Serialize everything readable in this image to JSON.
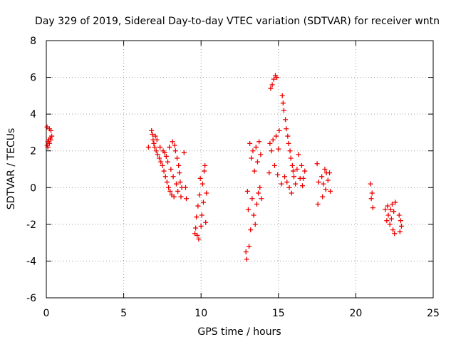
{
  "chart_data": {
    "type": "scatter",
    "title": "Day 329 of 2019, Sidereal Day-to-day VTEC variation (SDTVAR) for receiver wntn",
    "xlabel": "GPS time / hours",
    "ylabel": "SDTVAR / TECUs",
    "xlim": [
      0,
      25
    ],
    "ylim": [
      -6,
      8
    ],
    "xticks": [
      0,
      5,
      10,
      15,
      20,
      25
    ],
    "yticks": [
      -6,
      -4,
      -2,
      0,
      2,
      4,
      6,
      8
    ],
    "grid": true,
    "marker": "+",
    "color": "#ee0000",
    "series": [
      {
        "name": "SDTVAR",
        "points": [
          [
            0.05,
            2.3
          ],
          [
            0.1,
            2.5
          ],
          [
            0.15,
            2.6
          ],
          [
            0.2,
            3.2
          ],
          [
            0.25,
            2.7
          ],
          [
            0.3,
            3.1
          ],
          [
            0.35,
            2.8
          ],
          [
            0.05,
            3.3
          ],
          [
            0.1,
            2.2
          ],
          [
            0.2,
            2.4
          ],
          [
            0.3,
            2.6
          ],
          [
            6.6,
            2.2
          ],
          [
            6.8,
            3.1
          ],
          [
            6.85,
            2.9
          ],
          [
            6.9,
            2.6
          ],
          [
            6.95,
            2.4
          ],
          [
            7.0,
            2.2
          ],
          [
            7.05,
            2.8
          ],
          [
            7.1,
            2.0
          ],
          [
            7.15,
            2.6
          ],
          [
            7.2,
            1.8
          ],
          [
            7.3,
            1.6
          ],
          [
            7.35,
            2.2
          ],
          [
            7.4,
            1.4
          ],
          [
            7.5,
            1.2
          ],
          [
            7.55,
            2.0
          ],
          [
            7.6,
            0.9
          ],
          [
            7.65,
            1.9
          ],
          [
            7.7,
            0.6
          ],
          [
            7.75,
            1.7
          ],
          [
            7.8,
            0.3
          ],
          [
            7.85,
            1.4
          ],
          [
            7.9,
            0.0
          ],
          [
            7.95,
            2.2
          ],
          [
            8.0,
            -0.2
          ],
          [
            8.05,
            1.0
          ],
          [
            8.1,
            -0.4
          ],
          [
            8.15,
            2.5
          ],
          [
            8.2,
            0.6
          ],
          [
            8.25,
            -0.5
          ],
          [
            8.3,
            2.3
          ],
          [
            8.35,
            2.0
          ],
          [
            8.4,
            0.2
          ],
          [
            8.45,
            1.6
          ],
          [
            8.5,
            -0.2
          ],
          [
            8.55,
            1.2
          ],
          [
            8.6,
            0.8
          ],
          [
            8.65,
            0.3
          ],
          [
            8.7,
            -0.5
          ],
          [
            8.75,
            0.0
          ],
          [
            8.9,
            1.9
          ],
          [
            9.0,
            0.0
          ],
          [
            9.05,
            -0.6
          ],
          [
            9.6,
            -2.5
          ],
          [
            9.65,
            -2.2
          ],
          [
            9.7,
            -1.6
          ],
          [
            9.75,
            -2.6
          ],
          [
            9.8,
            -1.0
          ],
          [
            9.85,
            -2.8
          ],
          [
            9.9,
            -0.4
          ],
          [
            9.95,
            0.5
          ],
          [
            10.0,
            -2.1
          ],
          [
            10.05,
            -1.5
          ],
          [
            10.1,
            0.2
          ],
          [
            10.15,
            -0.8
          ],
          [
            10.2,
            0.9
          ],
          [
            10.25,
            1.2
          ],
          [
            10.3,
            -1.9
          ],
          [
            10.35,
            -0.3
          ],
          [
            12.9,
            -3.5
          ],
          [
            12.95,
            -3.9
          ],
          [
            13.0,
            -0.2
          ],
          [
            13.05,
            -1.2
          ],
          [
            13.1,
            -3.2
          ],
          [
            13.15,
            2.4
          ],
          [
            13.2,
            -2.3
          ],
          [
            13.25,
            1.6
          ],
          [
            13.3,
            -0.6
          ],
          [
            13.35,
            2.0
          ],
          [
            13.4,
            -1.5
          ],
          [
            13.45,
            0.9
          ],
          [
            13.5,
            -2.0
          ],
          [
            13.55,
            2.2
          ],
          [
            13.6,
            -0.9
          ],
          [
            13.65,
            1.4
          ],
          [
            13.7,
            -0.3
          ],
          [
            13.75,
            2.5
          ],
          [
            13.8,
            0.0
          ],
          [
            13.85,
            1.8
          ],
          [
            13.9,
            -0.6
          ],
          [
            14.4,
            0.8
          ],
          [
            14.45,
            2.4
          ],
          [
            14.5,
            5.4
          ],
          [
            14.55,
            2.0
          ],
          [
            14.6,
            5.6
          ],
          [
            14.65,
            2.6
          ],
          [
            14.7,
            5.9
          ],
          [
            14.75,
            1.2
          ],
          [
            14.8,
            6.1
          ],
          [
            14.85,
            2.8
          ],
          [
            14.9,
            6.0
          ],
          [
            14.95,
            0.7
          ],
          [
            15.0,
            2.1
          ],
          [
            15.05,
            3.1
          ],
          [
            15.2,
            0.2
          ],
          [
            15.25,
            5.0
          ],
          [
            15.3,
            4.6
          ],
          [
            15.35,
            4.2
          ],
          [
            15.4,
            0.6
          ],
          [
            15.45,
            3.7
          ],
          [
            15.5,
            3.2
          ],
          [
            15.55,
            0.3
          ],
          [
            15.6,
            2.8
          ],
          [
            15.65,
            2.4
          ],
          [
            15.7,
            0.0
          ],
          [
            15.75,
            2.0
          ],
          [
            15.8,
            1.6
          ],
          [
            15.85,
            -0.3
          ],
          [
            15.9,
            1.2
          ],
          [
            15.95,
            0.9
          ],
          [
            16.0,
            0.6
          ],
          [
            16.1,
            0.2
          ],
          [
            16.2,
            1.0
          ],
          [
            16.3,
            1.8
          ],
          [
            16.4,
            0.5
          ],
          [
            16.5,
            1.2
          ],
          [
            16.55,
            0.1
          ],
          [
            16.6,
            0.5
          ],
          [
            16.7,
            0.9
          ],
          [
            17.5,
            1.3
          ],
          [
            17.55,
            -0.9
          ],
          [
            17.6,
            0.3
          ],
          [
            17.8,
            0.6
          ],
          [
            17.85,
            -0.5
          ],
          [
            17.9,
            0.2
          ],
          [
            18.0,
            1.0
          ],
          [
            18.05,
            -0.1
          ],
          [
            18.1,
            0.8
          ],
          [
            18.2,
            0.4
          ],
          [
            18.3,
            0.8
          ],
          [
            18.35,
            -0.2
          ],
          [
            20.95,
            0.2
          ],
          [
            21.0,
            -0.6
          ],
          [
            21.05,
            -0.3
          ],
          [
            21.1,
            -1.1
          ],
          [
            21.9,
            -1.2
          ],
          [
            22.0,
            -1.8
          ],
          [
            22.05,
            -1.0
          ],
          [
            22.1,
            -1.5
          ],
          [
            22.2,
            -2.0
          ],
          [
            22.25,
            -1.2
          ],
          [
            22.3,
            -1.7
          ],
          [
            22.35,
            -0.9
          ],
          [
            22.4,
            -2.3
          ],
          [
            22.45,
            -1.3
          ],
          [
            22.5,
            -2.5
          ],
          [
            22.55,
            -0.8
          ],
          [
            22.8,
            -1.5
          ],
          [
            22.85,
            -2.4
          ],
          [
            22.9,
            -1.8
          ],
          [
            22.95,
            -2.1
          ]
        ]
      }
    ]
  }
}
